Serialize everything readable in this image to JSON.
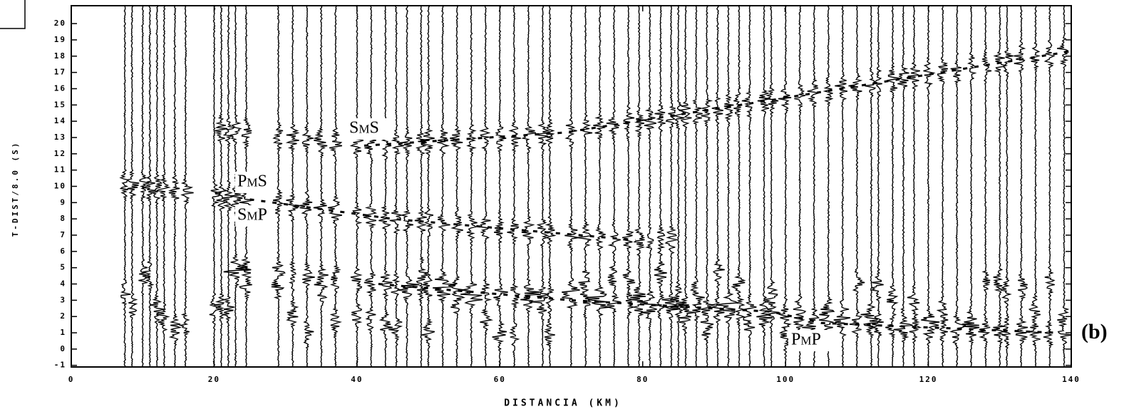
{
  "chart_data": {
    "type": "seismic",
    "xlabel": "DISTANCIA (KM)",
    "ylabel": "T-DIST/8.0 (S)",
    "xlim": [
      0,
      140
    ],
    "xticks": [
      0,
      20,
      40,
      60,
      80,
      100,
      120,
      140
    ],
    "ylim": [
      -1.1,
      21.1
    ],
    "yticks": [
      -1,
      0,
      1,
      2,
      3,
      4,
      5,
      6,
      7,
      8,
      9,
      10,
      11,
      12,
      13,
      14,
      15,
      16,
      17,
      18,
      19,
      20
    ],
    "traces": [
      7.5,
      8.5,
      10,
      11,
      12,
      13,
      14.5,
      16,
      20,
      21,
      22,
      23,
      24.5,
      29,
      31,
      33,
      35,
      37,
      40,
      42,
      44,
      45.5,
      47,
      49,
      50,
      52,
      54,
      56,
      58,
      60,
      62,
      64,
      66,
      67,
      70,
      72,
      74,
      76,
      78,
      79.5,
      81,
      82.5,
      84,
      85,
      86,
      87.5,
      89,
      90.5,
      92,
      93.5,
      95,
      97,
      98,
      100,
      102,
      104,
      106,
      108,
      110,
      112,
      113,
      115,
      116.5,
      118,
      120,
      122,
      124,
      126,
      128,
      130,
      131,
      133,
      135,
      137,
      139
    ],
    "dashed_lines": [
      {
        "x": [
          43,
          70,
          98,
          105,
          138
        ],
        "y": [
          4.0,
          3.0,
          2.3,
          1.6,
          1.0
        ]
      },
      {
        "x": [
          25,
          45,
          79
        ],
        "y": [
          9.2,
          8.0,
          6.7
        ]
      },
      {
        "x": [
          41,
          69,
          98,
          140
        ],
        "y": [
          12.5,
          13.3,
          15.3,
          18.3
        ]
      }
    ],
    "annotations": [
      "SmS",
      "PmS",
      "SmP",
      "PmP"
    ],
    "panel_label": "(b)"
  }
}
